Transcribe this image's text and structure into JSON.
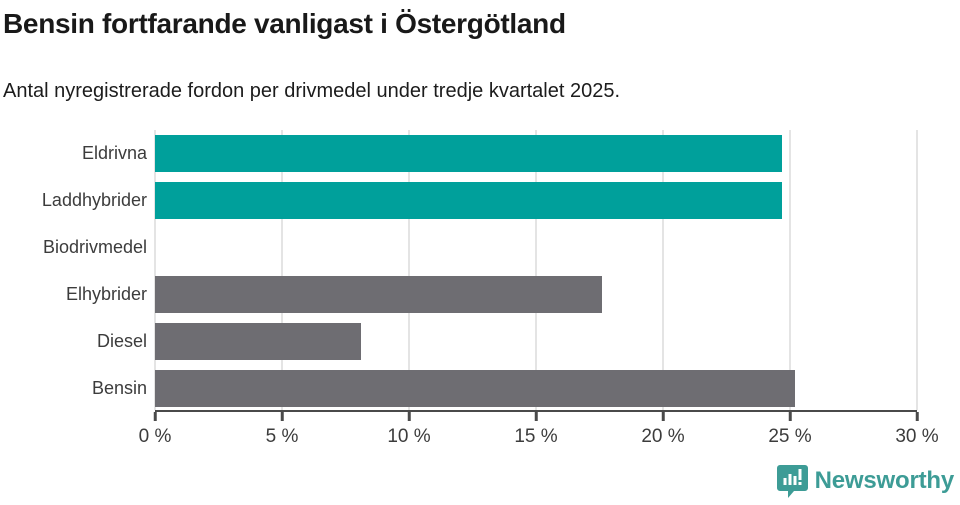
{
  "header": {
    "title": "Bensin fortfarande vanligast i Östergötland",
    "subtitle": "Antal nyregistrerade fordon per drivmedel under tredje kvartalet 2025."
  },
  "chart_data": {
    "type": "bar",
    "orientation": "horizontal",
    "title": "Bensin fortfarande vanligast i Östergötland",
    "subtitle": "Antal nyregistrerade fordon per drivmedel under tredje kvartalet 2025.",
    "categories": [
      "Eldrivna",
      "Laddhybrider",
      "Biodrivmedel",
      "Elhybrider",
      "Diesel",
      "Bensin"
    ],
    "values": [
      24.7,
      24.7,
      0,
      17.6,
      8.1,
      25.2
    ],
    "bar_colors": [
      "#00a09b",
      "#00a09b",
      "#6e6d72",
      "#6e6d72",
      "#6e6d72",
      "#6e6d72"
    ],
    "xlabel": "",
    "ylabel": "",
    "xlim": [
      0,
      30
    ],
    "x_ticks": [
      0,
      5,
      10,
      15,
      20,
      25,
      30
    ],
    "x_tick_labels": [
      "0 %",
      "5 %",
      "10 %",
      "15 %",
      "20 %",
      "25 %",
      "30 %"
    ],
    "grid": true,
    "legend": false
  },
  "colors": {
    "accent_teal": "#00a09b",
    "neutral_gray": "#6e6d72",
    "gridline": "#e4e4e4",
    "axis": "#4a4a4a",
    "brand_teal": "#3d9c96"
  },
  "footer": {
    "brand": "Newsworthy"
  }
}
